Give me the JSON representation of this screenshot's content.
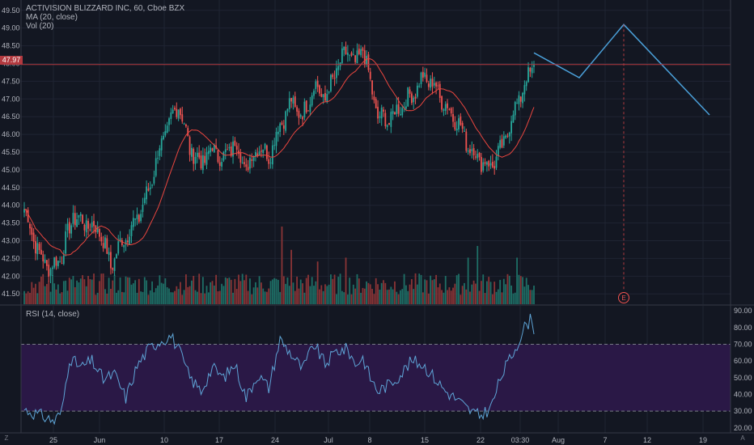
{
  "header": {
    "symbol_line": "ACTIVISION BLIZZARD INC, 60, Cboe BZX",
    "ma_label": "MA (20, close)",
    "vol_label": "Vol (20)",
    "rsi_label": "RSI (14, close)",
    "last_price": "47.97",
    "earnings_marker": "E",
    "corner_left": "Z",
    "corner_right": "A"
  },
  "colors": {
    "background": "#131722",
    "up": "#26a69a",
    "down": "#ef5350",
    "ma_line": "#e9463f",
    "rsi_line": "#5ea4d6",
    "rsi_band": "#2a1846",
    "projection": "#4a9fd8",
    "price_line": "#b2393f"
  },
  "chart_data": [
    {
      "type": "candlestick",
      "title": "ACTIVISION BLIZZARD INC, 60, Cboe BZX",
      "y_axis_ticks": [
        "49.50",
        "49.00",
        "48.50",
        "48.00",
        "47.50",
        "47.00",
        "46.50",
        "46.00",
        "45.50",
        "45.00",
        "44.50",
        "44.00",
        "43.50",
        "43.00",
        "42.50",
        "42.00",
        "41.50"
      ],
      "x_axis_ticks": [
        "25",
        "Jun",
        "10",
        "17",
        "24",
        "Jul",
        "8",
        "15",
        "22",
        "03:30",
        "Aug",
        "7",
        "12",
        "19"
      ],
      "ylim": [
        41.3,
        49.7
      ],
      "last_price": 47.97,
      "anchors": [
        {
          "i": 0,
          "price": 43.9
        },
        {
          "i": 8,
          "price": 42.6
        },
        {
          "i": 14,
          "price": 42.2
        },
        {
          "i": 20,
          "price": 42.6
        },
        {
          "i": 26,
          "price": 43.7
        },
        {
          "i": 32,
          "price": 43.5
        },
        {
          "i": 40,
          "price": 43.3
        },
        {
          "i": 46,
          "price": 42.3
        },
        {
          "i": 52,
          "price": 43.0
        },
        {
          "i": 60,
          "price": 43.6
        },
        {
          "i": 66,
          "price": 44.4
        },
        {
          "i": 72,
          "price": 45.6
        },
        {
          "i": 78,
          "price": 46.4
        },
        {
          "i": 82,
          "price": 46.9
        },
        {
          "i": 88,
          "price": 45.6
        },
        {
          "i": 94,
          "price": 45.2
        },
        {
          "i": 100,
          "price": 45.6
        },
        {
          "i": 106,
          "price": 45.3
        },
        {
          "i": 112,
          "price": 45.8
        },
        {
          "i": 118,
          "price": 45.0
        },
        {
          "i": 124,
          "price": 45.7
        },
        {
          "i": 130,
          "price": 45.4
        },
        {
          "i": 136,
          "price": 46.3
        },
        {
          "i": 142,
          "price": 46.9
        },
        {
          "i": 148,
          "price": 46.5
        },
        {
          "i": 154,
          "price": 47.4
        },
        {
          "i": 160,
          "price": 47.0
        },
        {
          "i": 166,
          "price": 47.8
        },
        {
          "i": 172,
          "price": 48.4
        },
        {
          "i": 176,
          "price": 47.9
        },
        {
          "i": 180,
          "price": 48.5
        },
        {
          "i": 184,
          "price": 47.4
        },
        {
          "i": 188,
          "price": 46.5
        },
        {
          "i": 194,
          "price": 46.4
        },
        {
          "i": 200,
          "price": 46.8
        },
        {
          "i": 206,
          "price": 47.1
        },
        {
          "i": 212,
          "price": 47.6
        },
        {
          "i": 218,
          "price": 47.4
        },
        {
          "i": 224,
          "price": 46.8
        },
        {
          "i": 230,
          "price": 46.4
        },
        {
          "i": 236,
          "price": 45.7
        },
        {
          "i": 242,
          "price": 45.3
        },
        {
          "i": 248,
          "price": 45.1
        },
        {
          "i": 254,
          "price": 45.6
        },
        {
          "i": 260,
          "price": 46.6
        },
        {
          "i": 266,
          "price": 47.4
        },
        {
          "i": 271,
          "price": 47.97
        }
      ],
      "bar_count": 272,
      "volume_spikes": [
        {
          "i": 137,
          "vol": 1.0
        },
        {
          "i": 142,
          "vol": 0.7
        },
        {
          "i": 156,
          "vol": 0.55
        },
        {
          "i": 171,
          "vol": 0.6
        },
        {
          "i": 236,
          "vol": 0.6
        },
        {
          "i": 241,
          "vol": 0.75
        },
        {
          "i": 262,
          "vol": 0.6
        }
      ],
      "projection": [
        {
          "label": "start",
          "price": 48.3
        },
        {
          "label": "dip",
          "price": 47.6
        },
        {
          "label": "peak",
          "price": 49.1
        },
        {
          "label": "end",
          "price": 46.55
        }
      ],
      "earnings_marker": "E"
    },
    {
      "type": "line",
      "title": "RSI (14, close)",
      "y_axis_ticks": [
        "90.00",
        "80.00",
        "70.00",
        "60.00",
        "50.00",
        "40.00",
        "30.00",
        "20.00"
      ],
      "ylim": [
        18,
        91
      ],
      "band": [
        30,
        70
      ],
      "anchors": [
        {
          "i": 0,
          "value": 31
        },
        {
          "i": 10,
          "value": 27
        },
        {
          "i": 16,
          "value": 24
        },
        {
          "i": 20,
          "value": 30
        },
        {
          "i": 24,
          "value": 62
        },
        {
          "i": 30,
          "value": 56
        },
        {
          "i": 36,
          "value": 60
        },
        {
          "i": 42,
          "value": 49
        },
        {
          "i": 48,
          "value": 52
        },
        {
          "i": 54,
          "value": 38
        },
        {
          "i": 60,
          "value": 57
        },
        {
          "i": 66,
          "value": 67
        },
        {
          "i": 72,
          "value": 72
        },
        {
          "i": 78,
          "value": 75
        },
        {
          "i": 82,
          "value": 67
        },
        {
          "i": 88,
          "value": 50
        },
        {
          "i": 94,
          "value": 42
        },
        {
          "i": 100,
          "value": 56
        },
        {
          "i": 106,
          "value": 50
        },
        {
          "i": 112,
          "value": 58
        },
        {
          "i": 118,
          "value": 38
        },
        {
          "i": 124,
          "value": 52
        },
        {
          "i": 130,
          "value": 44
        },
        {
          "i": 136,
          "value": 73
        },
        {
          "i": 142,
          "value": 64
        },
        {
          "i": 148,
          "value": 55
        },
        {
          "i": 154,
          "value": 70
        },
        {
          "i": 160,
          "value": 58
        },
        {
          "i": 166,
          "value": 66
        },
        {
          "i": 172,
          "value": 67
        },
        {
          "i": 176,
          "value": 58
        },
        {
          "i": 180,
          "value": 62
        },
        {
          "i": 184,
          "value": 50
        },
        {
          "i": 188,
          "value": 42
        },
        {
          "i": 194,
          "value": 46
        },
        {
          "i": 200,
          "value": 52
        },
        {
          "i": 206,
          "value": 60
        },
        {
          "i": 212,
          "value": 58
        },
        {
          "i": 218,
          "value": 50
        },
        {
          "i": 224,
          "value": 42
        },
        {
          "i": 230,
          "value": 37
        },
        {
          "i": 236,
          "value": 31
        },
        {
          "i": 242,
          "value": 27
        },
        {
          "i": 248,
          "value": 32
        },
        {
          "i": 254,
          "value": 52
        },
        {
          "i": 260,
          "value": 65
        },
        {
          "i": 266,
          "value": 80
        },
        {
          "i": 270,
          "value": 86
        },
        {
          "i": 271,
          "value": 76
        }
      ],
      "bar_count": 272
    }
  ]
}
